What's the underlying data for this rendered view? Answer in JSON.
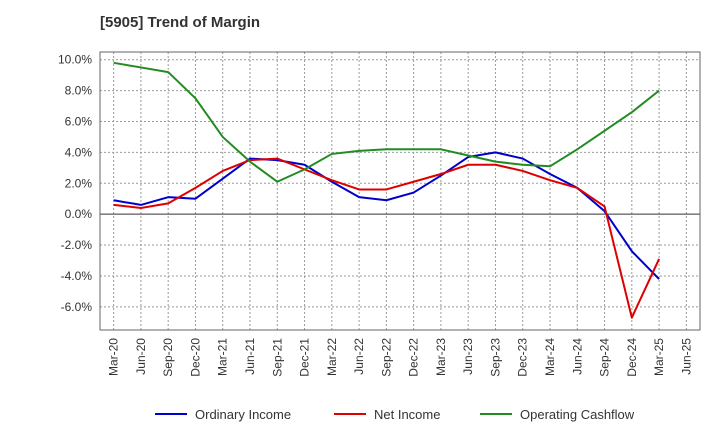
{
  "chart_data": {
    "type": "line",
    "title": "[5905]  Trend of Margin",
    "xlabel": "",
    "ylabel": "",
    "x": [
      "Mar-20",
      "Jun-20",
      "Sep-20",
      "Dec-20",
      "Mar-21",
      "Jun-21",
      "Sep-21",
      "Dec-21",
      "Mar-22",
      "Jun-22",
      "Sep-22",
      "Dec-22",
      "Mar-23",
      "Jun-23",
      "Sep-23",
      "Dec-23",
      "Mar-24",
      "Jun-24",
      "Sep-24",
      "Dec-24",
      "Mar-25",
      "Jun-25"
    ],
    "ylim": [
      -7.5,
      10.5
    ],
    "yticks": [
      10.0,
      8.0,
      6.0,
      4.0,
      2.0,
      0.0,
      -2.0,
      -4.0,
      -6.0
    ],
    "ytick_labels": [
      "10.0%",
      "8.0%",
      "6.0%",
      "4.0%",
      "2.0%",
      "0.0%",
      "-2.0%",
      "-4.0%",
      "-6.0%"
    ],
    "grid": true,
    "legend_position": "bottom",
    "series": [
      {
        "name": "Ordinary Income",
        "color": "#0000cc",
        "values": [
          0.9,
          0.6,
          1.1,
          1.0,
          2.3,
          3.6,
          3.5,
          3.2,
          2.1,
          1.1,
          0.9,
          1.4,
          2.5,
          3.7,
          4.0,
          3.6,
          2.6,
          1.7,
          0.2,
          -2.4,
          -4.2,
          null
        ]
      },
      {
        "name": "Net Income",
        "color": "#dd0000",
        "values": [
          0.6,
          0.4,
          0.7,
          1.7,
          2.8,
          3.5,
          3.6,
          2.9,
          2.2,
          1.6,
          1.6,
          2.1,
          2.6,
          3.2,
          3.2,
          2.8,
          2.2,
          1.7,
          0.5,
          -6.7,
          -2.9,
          null
        ]
      },
      {
        "name": "Operating Cashflow",
        "color": "#228b22",
        "values": [
          9.8,
          9.5,
          9.2,
          7.5,
          5.0,
          3.4,
          2.1,
          2.9,
          3.9,
          4.1,
          4.2,
          4.2,
          4.2,
          3.8,
          3.4,
          3.2,
          3.1,
          4.2,
          5.4,
          6.6,
          8.0,
          null
        ]
      }
    ]
  }
}
